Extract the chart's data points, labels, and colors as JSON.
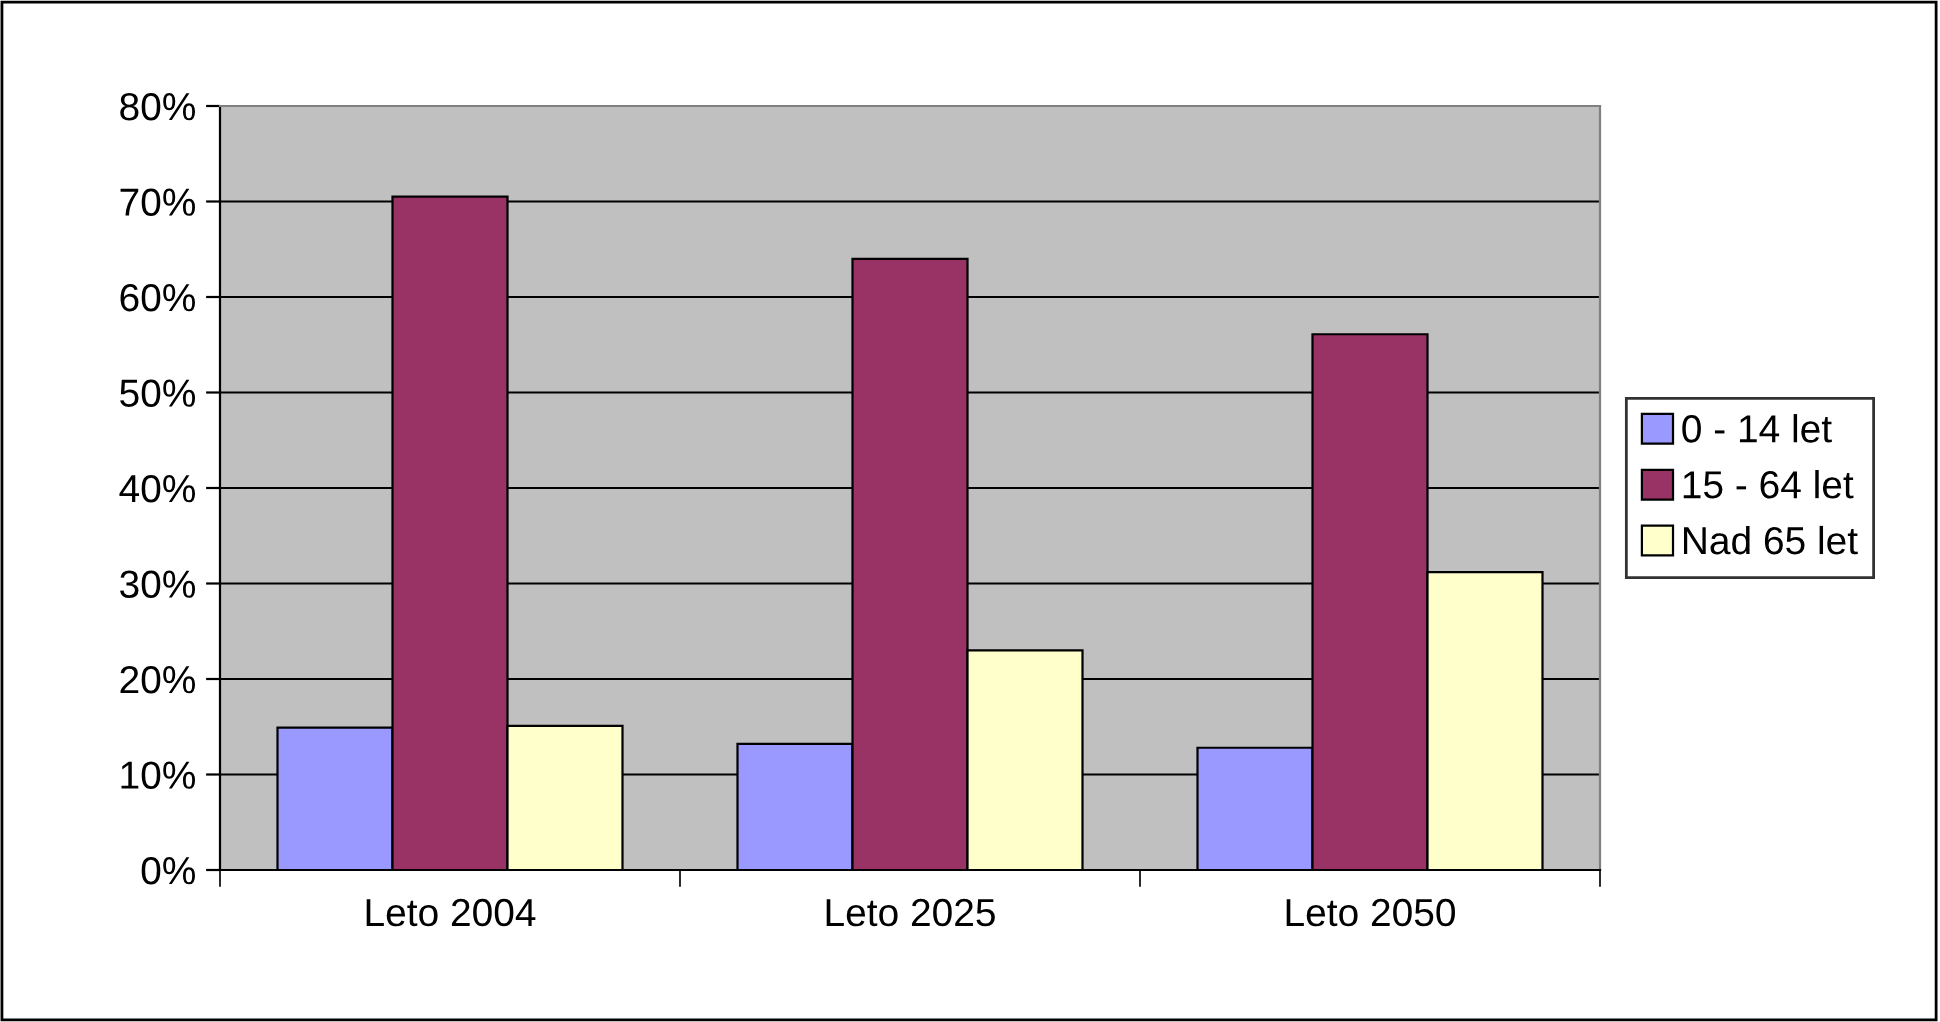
{
  "chart_data": {
    "type": "bar",
    "categories": [
      "Leto 2004",
      "Leto 2025",
      "Leto 2050"
    ],
    "series": [
      {
        "name": "0 - 14 let",
        "color": "#9999ff",
        "values": [
          14.9,
          13.2,
          12.8
        ]
      },
      {
        "name": "15 - 64 let",
        "color": "#993366",
        "values": [
          70.5,
          64.0,
          56.1
        ]
      },
      {
        "name": "Nad 65 let",
        "color": "#ffffcc",
        "values": [
          15.1,
          23.0,
          31.2
        ]
      }
    ],
    "ylim": [
      0,
      80
    ],
    "yticks": [
      {
        "value": 0,
        "label": "0%"
      },
      {
        "value": 10,
        "label": "10%"
      },
      {
        "value": 20,
        "label": "20%"
      },
      {
        "value": 30,
        "label": "30%"
      },
      {
        "value": 40,
        "label": "40%"
      },
      {
        "value": 50,
        "label": "50%"
      },
      {
        "value": 60,
        "label": "60%"
      },
      {
        "value": 70,
        "label": "70%"
      },
      {
        "value": 80,
        "label": "80%"
      }
    ],
    "grid": "y",
    "legend": "right"
  }
}
